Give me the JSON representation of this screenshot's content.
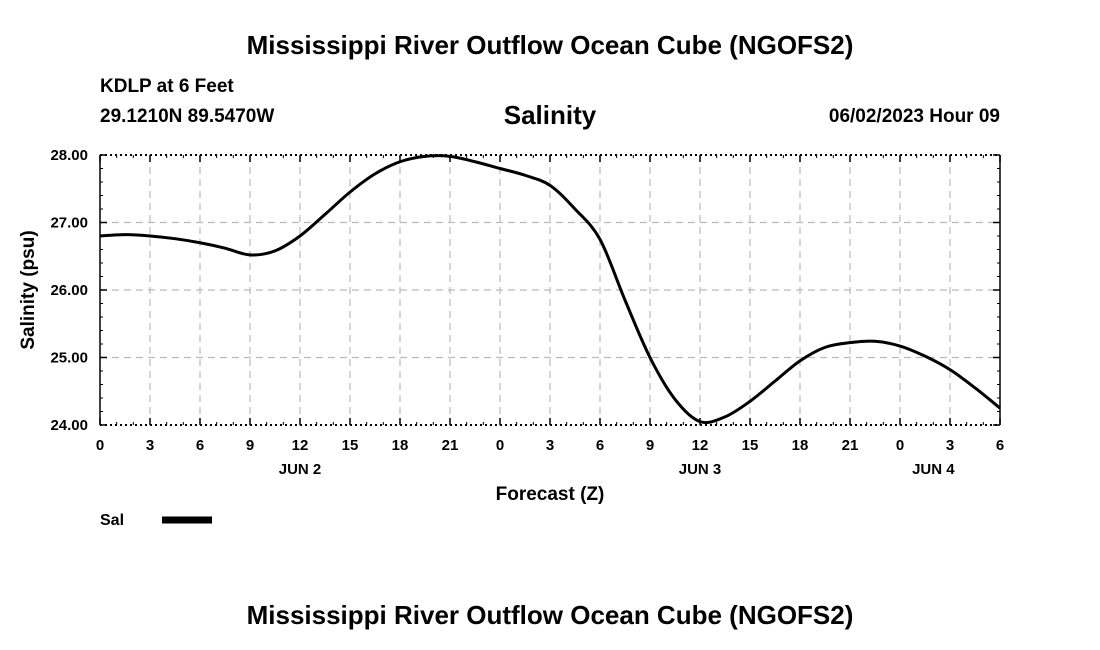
{
  "header": {
    "title_top": "Mississippi River Outflow Ocean Cube (NGOFS2)",
    "title_bottom": "Mississippi River Outflow Ocean Cube (NGOFS2)",
    "station": "KDLP at 6 Feet",
    "coords": "29.1210N  89.5470W",
    "datetime": "06/02/2023 Hour 09"
  },
  "colors": {
    "line": "#000000",
    "grid": "#bbbbbb",
    "background": "#ffffff"
  },
  "chart_data": {
    "type": "line",
    "title": "Salinity",
    "xlabel": "Forecast (Z)",
    "ylabel": "Salinity (psu)",
    "xlim": [
      0,
      54
    ],
    "ylim": [
      24,
      28
    ],
    "x_tick_labels": [
      "0",
      "3",
      "6",
      "9",
      "12",
      "15",
      "18",
      "21",
      "0",
      "3",
      "6",
      "9",
      "12",
      "15",
      "18",
      "21",
      "0",
      "3",
      "6"
    ],
    "y_tick_labels": [
      "24.00",
      "25.00",
      "26.00",
      "27.00",
      "28.00"
    ],
    "date_labels": [
      {
        "label": "JUN 2",
        "hour": 12
      },
      {
        "label": "JUN 3",
        "hour": 36
      },
      {
        "label": "JUN 4",
        "hour": 50
      }
    ],
    "grid": true,
    "legend": [
      {
        "name": "Sal",
        "color": "#000000"
      }
    ],
    "series": [
      {
        "name": "Sal",
        "x": [
          0,
          1.5,
          3,
          4.5,
          6,
          7.5,
          9,
          10.5,
          12,
          13.5,
          15,
          16.5,
          18,
          19.5,
          21,
          22.5,
          24,
          25.5,
          27,
          28.5,
          30,
          31.5,
          33,
          34.5,
          36,
          37.5,
          39,
          40.5,
          42,
          43.5,
          45,
          46.5,
          48,
          49.5,
          51,
          52.5,
          54
        ],
        "values": [
          26.8,
          26.82,
          26.8,
          26.76,
          26.7,
          26.62,
          26.52,
          26.58,
          26.8,
          27.12,
          27.45,
          27.72,
          27.9,
          27.98,
          27.98,
          27.9,
          27.8,
          27.7,
          27.55,
          27.2,
          26.75,
          25.85,
          25.0,
          24.38,
          24.05,
          24.12,
          24.35,
          24.65,
          24.95,
          25.15,
          25.22,
          25.24,
          25.17,
          25.02,
          24.82,
          24.55,
          24.25
        ]
      }
    ]
  }
}
